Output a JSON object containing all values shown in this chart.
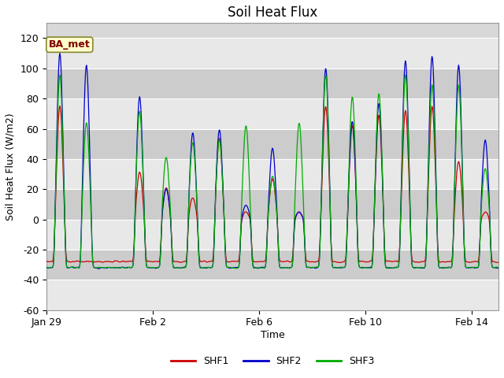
{
  "title": "Soil Heat Flux",
  "ylabel": "Soil Heat Flux (W/m2)",
  "xlabel": "Time",
  "annotation": "BA_met",
  "ylim": [
    -60,
    130
  ],
  "yticks": [
    -60,
    -40,
    -20,
    0,
    20,
    40,
    60,
    80,
    100,
    120
  ],
  "line_colors": [
    "#cc0000",
    "#0000cc",
    "#00aa00"
  ],
  "line_labels": [
    "SHF1",
    "SHF2",
    "SHF3"
  ],
  "background_color": "#ffffff",
  "plot_bg_color": "#d8d8d8",
  "band_light": "#e8e8e8",
  "band_dark": "#cccccc",
  "grid_line_color": "#ffffff",
  "x_tick_labels": [
    "Jan 29",
    "Feb 2",
    "Feb 6",
    "Feb 10",
    "Feb 14"
  ],
  "x_tick_positions": [
    0,
    4,
    8,
    12,
    16
  ],
  "total_days": 17.0,
  "title_fontsize": 12,
  "axis_label_fontsize": 9,
  "tick_fontsize": 9
}
